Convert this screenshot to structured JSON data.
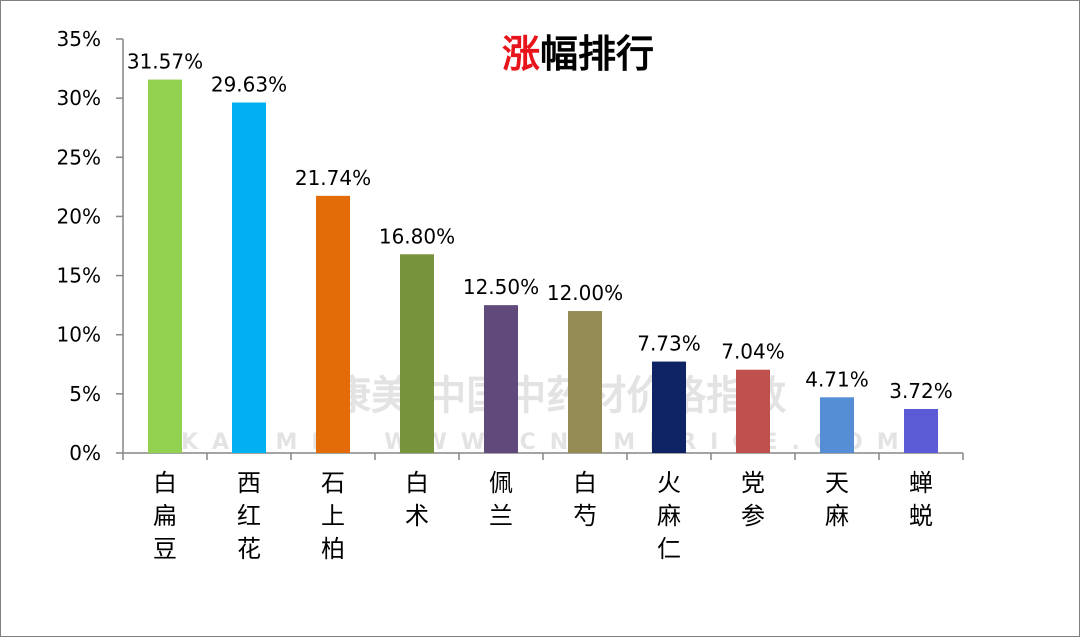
{
  "chart_data": {
    "type": "bar",
    "title_highlight": "涨",
    "title_rest": "幅排行",
    "title_colors": {
      "highlight": "#e8141b",
      "rest": "#000000"
    },
    "categories": [
      "白扁豆",
      "西红花",
      "石上柏",
      "白术",
      "佩兰",
      "白芍",
      "火麻仁",
      "党参",
      "天麻",
      "蝉蜕"
    ],
    "values": [
      31.57,
      29.63,
      21.74,
      16.8,
      12.5,
      12.0,
      7.73,
      7.04,
      4.71,
      3.72
    ],
    "value_labels": [
      "31.57%",
      "29.63%",
      "21.74%",
      "16.80%",
      "12.50%",
      "12.00%",
      "7.73%",
      "7.04%",
      "4.71%",
      "3.72%"
    ],
    "bar_colors": [
      "#92d050",
      "#00b0f0",
      "#e36c09",
      "#77933c",
      "#604a7b",
      "#948a54",
      "#0f2464",
      "#c0504d",
      "#558ed5",
      "#5b5bd6"
    ],
    "y_ticks": [
      0,
      5,
      10,
      15,
      20,
      25,
      30,
      35
    ],
    "y_tick_labels": [
      "0%",
      "5%",
      "10%",
      "15%",
      "20%",
      "25%",
      "30%",
      "35%"
    ],
    "ylim": [
      0,
      35
    ],
    "grid": false,
    "legend": "none",
    "xlabel": "",
    "ylabel": ""
  },
  "watermark": {
    "text": "康美·中国中药材价格指数",
    "sub": "KANMEI WWW.CNKMPRICE.COM"
  }
}
